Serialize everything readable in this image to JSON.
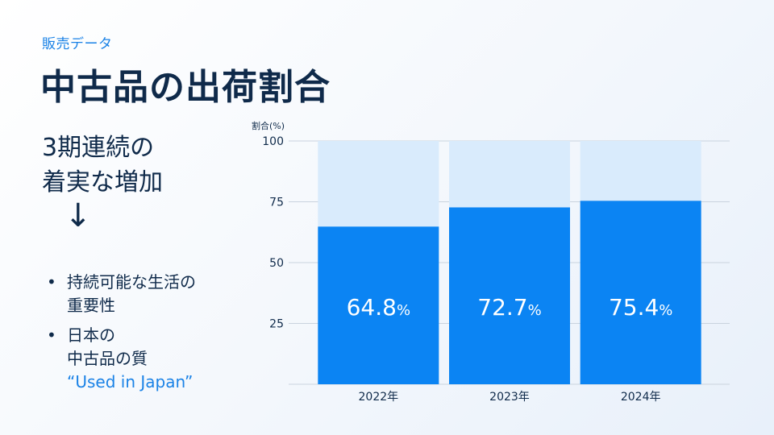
{
  "header": {
    "eyebrow": "販売データ",
    "title": "中古品の出荷割合"
  },
  "left": {
    "headline_line1": "3期連続の",
    "headline_line2": "着実な増加",
    "arrow": "↓",
    "bullets": [
      {
        "marker": "•",
        "line1": "持続可能な生活の",
        "line2": "重要性"
      },
      {
        "marker": "•",
        "line1": "日本の",
        "line2": "中古品の質",
        "line3": "“Used in Japan”"
      }
    ]
  },
  "colors": {
    "bar_fill": "#0b84f3",
    "bar_remainder": "#d9ebfc",
    "accent": "#1a82e6",
    "text": "#0f2a4a"
  },
  "chart_data": {
    "type": "bar",
    "stacked_to": 100,
    "ylabel": "割合(%)",
    "ylim": [
      0,
      100
    ],
    "yticks": [
      25,
      50,
      75,
      100
    ],
    "grid": true,
    "categories": [
      "2022年",
      "2023年",
      "2024年"
    ],
    "values": [
      64.8,
      72.7,
      75.4
    ],
    "data_labels": [
      "64.8",
      "72.7",
      "75.4"
    ],
    "data_label_suffix": "%"
  }
}
